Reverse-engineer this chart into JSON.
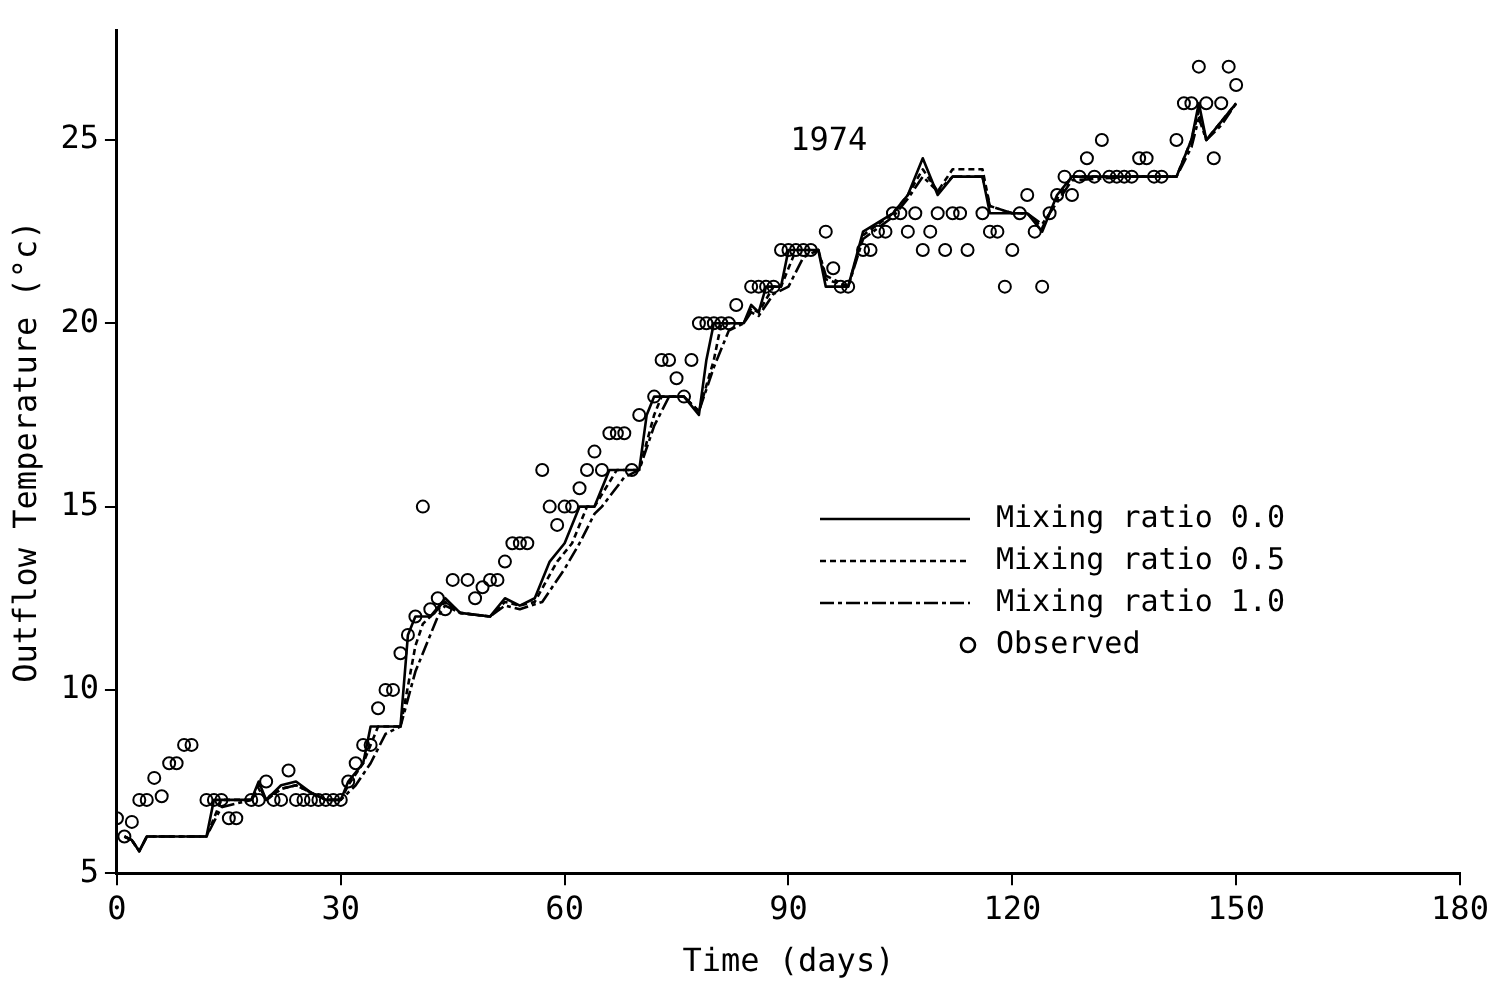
{
  "chart_data": {
    "type": "line",
    "title": "1974",
    "xlabel": "Time (days)",
    "ylabel": "Outflow Temperature (°c)",
    "xlim": [
      0,
      180
    ],
    "xticks": [
      0,
      30,
      60,
      90,
      120,
      150,
      180
    ],
    "ylim": [
      5,
      28
    ],
    "yticks": [
      5,
      10,
      15,
      20,
      25
    ],
    "grid": false,
    "legend": "right",
    "series": [
      {
        "name": "Mixing ratio 0.0",
        "color": "#000000",
        "type": "line",
        "line_style": "solid",
        "marker": "none",
        "x": [
          1,
          2,
          3,
          4,
          12,
          13,
          18,
          19,
          20,
          22,
          24,
          26,
          28,
          30,
          31,
          33,
          34,
          38,
          39,
          40,
          42,
          44,
          46,
          50,
          52,
          54,
          56,
          58,
          60,
          62,
          64,
          66,
          70,
          71,
          72,
          76,
          78,
          79,
          80,
          84,
          85,
          86,
          87,
          89,
          90,
          94,
          95,
          98,
          100,
          104,
          106,
          108,
          110,
          112,
          116,
          117,
          120,
          122,
          124,
          126,
          128,
          136,
          140,
          142,
          144,
          145,
          146,
          148,
          150
        ],
        "values": [
          6.0,
          5.9,
          5.6,
          6.0,
          6.0,
          7.0,
          7.0,
          7.5,
          7.0,
          7.4,
          7.5,
          7.2,
          7.0,
          7.0,
          7.5,
          8.0,
          9.0,
          9.0,
          11.5,
          12.0,
          12.0,
          12.5,
          12.1,
          12.0,
          12.5,
          12.3,
          12.5,
          13.5,
          14.0,
          15.0,
          15.0,
          16.0,
          16.0,
          17.5,
          18.0,
          18.0,
          17.5,
          19.0,
          20.0,
          20.0,
          20.5,
          20.3,
          21.0,
          21.0,
          22.0,
          22.0,
          21.0,
          21.0,
          22.5,
          23.0,
          23.5,
          24.5,
          23.5,
          24.0,
          24.0,
          23.0,
          23.0,
          23.0,
          22.5,
          23.5,
          24.0,
          24.0,
          24.0,
          24.0,
          25.0,
          26.0,
          25.0,
          25.5,
          26.0
        ]
      },
      {
        "name": "Mixing ratio 0.5",
        "color": "#000000",
        "type": "line",
        "line_style": "dotted",
        "marker": "none",
        "x": [
          1,
          2,
          3,
          4,
          12,
          14,
          18,
          19,
          20,
          22,
          24,
          26,
          28,
          30,
          31,
          33,
          35,
          38,
          40,
          41,
          42,
          44,
          46,
          50,
          52,
          54,
          56,
          59,
          61,
          63,
          64,
          67,
          70,
          72,
          73,
          76,
          78,
          80,
          81,
          84,
          85,
          86,
          88,
          89,
          91,
          94,
          95,
          98,
          100,
          104,
          106,
          108,
          110,
          112,
          116,
          117,
          120,
          122,
          124,
          126,
          128,
          136,
          140,
          142,
          144,
          145,
          146,
          148,
          150
        ],
        "values": [
          6.0,
          5.9,
          5.6,
          6.0,
          6.0,
          7.0,
          7.0,
          7.4,
          7.0,
          7.3,
          7.4,
          7.2,
          7.0,
          7.0,
          7.4,
          8.0,
          9.0,
          9.0,
          11.2,
          11.8,
          12.0,
          12.4,
          12.1,
          12.0,
          12.4,
          12.3,
          12.4,
          13.5,
          14.0,
          15.0,
          15.0,
          16.0,
          16.0,
          17.5,
          18.0,
          18.0,
          17.6,
          19.0,
          20.0,
          20.0,
          20.4,
          20.3,
          21.0,
          21.0,
          22.0,
          22.0,
          21.2,
          21.0,
          22.4,
          23.0,
          23.5,
          24.2,
          23.6,
          24.2,
          24.2,
          23.2,
          23.0,
          23.0,
          22.6,
          23.4,
          24.0,
          24.0,
          24.0,
          24.0,
          25.0,
          25.8,
          25.0,
          25.5,
          26.0
        ]
      },
      {
        "name": "Mixing ratio 1.0",
        "color": "#000000",
        "type": "line",
        "line_style": "dashed",
        "marker": "none",
        "x": [
          1,
          2,
          3,
          4,
          12,
          14,
          18,
          19,
          20,
          22,
          24,
          26,
          28,
          30,
          32,
          34,
          36,
          38,
          40,
          42,
          43,
          44,
          46,
          50,
          52,
          54,
          57,
          60,
          62,
          64,
          65,
          68,
          70,
          72,
          74,
          76,
          78,
          80,
          82,
          84,
          85,
          86,
          88,
          90,
          92,
          94,
          95,
          98,
          100,
          104,
          106,
          108,
          110,
          112,
          116,
          117,
          120,
          122,
          124,
          126,
          128,
          136,
          140,
          142,
          144,
          145,
          146,
          148,
          150
        ],
        "values": [
          6.0,
          5.9,
          5.6,
          6.0,
          6.0,
          6.8,
          7.0,
          7.3,
          7.0,
          7.3,
          7.4,
          7.2,
          7.0,
          7.0,
          7.4,
          8.0,
          8.8,
          9.0,
          10.5,
          11.5,
          12.0,
          12.3,
          12.1,
          12.0,
          12.3,
          12.2,
          12.4,
          13.3,
          14.0,
          14.8,
          15.0,
          15.8,
          16.0,
          17.2,
          18.0,
          18.0,
          17.6,
          18.8,
          19.8,
          20.0,
          20.3,
          20.2,
          20.8,
          21.0,
          21.8,
          22.0,
          21.3,
          21.0,
          22.3,
          22.9,
          23.4,
          24.0,
          23.6,
          24.0,
          24.0,
          23.2,
          23.0,
          23.0,
          22.7,
          23.3,
          23.9,
          24.0,
          24.0,
          24.0,
          24.8,
          25.6,
          25.0,
          25.4,
          26.0
        ]
      },
      {
        "name": "Observed",
        "color": "#000000",
        "type": "scatter",
        "marker": "circle",
        "x": [
          0,
          1,
          2,
          3,
          4,
          5,
          6,
          7,
          8,
          9,
          10,
          12,
          13,
          14,
          15,
          16,
          18,
          19,
          20,
          21,
          22,
          23,
          24,
          25,
          26,
          27,
          28,
          29,
          30,
          31,
          32,
          33,
          34,
          35,
          36,
          37,
          38,
          39,
          40,
          41,
          42,
          43,
          44,
          45,
          47,
          48,
          49,
          50,
          51,
          52,
          53,
          54,
          55,
          57,
          58,
          59,
          60,
          61,
          62,
          63,
          64,
          65,
          66,
          67,
          68,
          69,
          70,
          72,
          73,
          74,
          75,
          76,
          77,
          78,
          79,
          80,
          81,
          82,
          83,
          85,
          86,
          87,
          88,
          89,
          90,
          91,
          92,
          93,
          95,
          96,
          97,
          98,
          100,
          101,
          102,
          103,
          104,
          105,
          106,
          107,
          108,
          109,
          110,
          111,
          112,
          113,
          114,
          116,
          117,
          118,
          119,
          120,
          121,
          122,
          123,
          124,
          125,
          126,
          127,
          128,
          129,
          130,
          131,
          132,
          133,
          134,
          135,
          136,
          137,
          138,
          139,
          140,
          142,
          143,
          144,
          145,
          146,
          147,
          148,
          149,
          150
        ],
        "values": [
          6.5,
          6.0,
          6.4,
          7.0,
          7.0,
          7.6,
          7.1,
          8.0,
          8.0,
          8.5,
          8.5,
          7.0,
          7.0,
          7.0,
          6.5,
          6.5,
          7.0,
          7.0,
          7.5,
          7.0,
          7.0,
          7.8,
          7.0,
          7.0,
          7.0,
          7.0,
          7.0,
          7.0,
          7.0,
          7.5,
          8.0,
          8.5,
          8.5,
          9.5,
          10.0,
          10.0,
          11.0,
          11.5,
          12.0,
          15.0,
          12.2,
          12.5,
          12.2,
          13.0,
          13.0,
          12.5,
          12.8,
          13.0,
          13.0,
          13.5,
          14.0,
          14.0,
          14.0,
          16.0,
          15.0,
          14.5,
          15.0,
          15.0,
          15.5,
          16.0,
          16.5,
          16.0,
          17.0,
          17.0,
          17.0,
          16.0,
          17.5,
          18.0,
          19.0,
          19.0,
          18.5,
          18.0,
          19.0,
          20.0,
          20.0,
          20.0,
          20.0,
          20.0,
          20.5,
          21.0,
          21.0,
          21.0,
          21.0,
          22.0,
          22.0,
          22.0,
          22.0,
          22.0,
          22.5,
          21.5,
          21.0,
          21.0,
          22.0,
          22.0,
          22.5,
          22.5,
          23.0,
          23.0,
          22.5,
          23.0,
          22.0,
          22.5,
          23.0,
          22.0,
          23.0,
          23.0,
          22.0,
          23.0,
          22.5,
          22.5,
          21.0,
          22.0,
          23.0,
          23.5,
          22.5,
          21.0,
          23.0,
          23.5,
          24.0,
          23.5,
          24.0,
          24.5,
          24.0,
          25.0,
          24.0,
          24.0,
          24.0,
          24.0,
          24.5,
          24.5,
          24.0,
          24.0,
          25.0,
          26.0,
          26.0,
          27.0,
          26.0,
          24.5,
          26.0,
          27.0,
          26.5
        ]
      }
    ]
  }
}
